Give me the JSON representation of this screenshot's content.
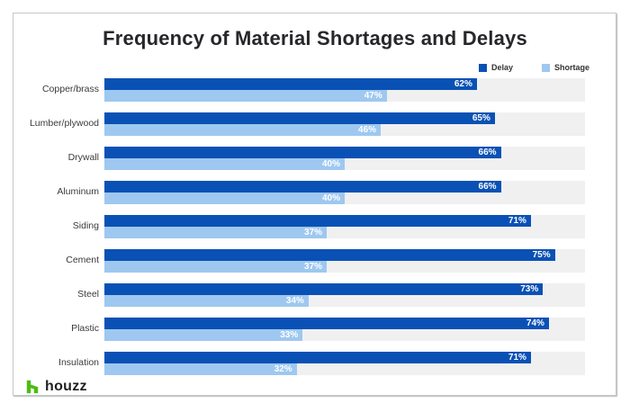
{
  "title": "Frequency of Material Shortages and Delays",
  "footer": {
    "logo_text": "houzz"
  },
  "colors": {
    "delay": "#0A51B5",
    "shortage": "#9EC8F0",
    "track": "#F0F0F1",
    "houzz_green": "#4DBC15",
    "title_text": "#27272B",
    "value_label_text": "#FFFFFF"
  },
  "chart_data": {
    "type": "bar",
    "orientation": "horizontal",
    "title": "Frequency of Material Shortages and Delays",
    "categories": [
      "Copper/brass",
      "Lumber/plywood",
      "Drywall",
      "Aluminum",
      "Siding",
      "Cement",
      "Steel",
      "Plastic",
      "Insulation"
    ],
    "series": [
      {
        "name": "Delay",
        "color": "#0A51B5",
        "values": [
          62,
          65,
          66,
          66,
          71,
          75,
          73,
          74,
          71
        ]
      },
      {
        "name": "Shortage",
        "color": "#9EC8F0",
        "values": [
          47,
          46,
          40,
          40,
          37,
          37,
          34,
          33,
          32
        ]
      }
    ],
    "value_suffix": "%",
    "xlim": [
      0,
      80
    ],
    "value_labels": "inside-end-white",
    "legend_position": "top-right",
    "grid": false,
    "track_background": true
  }
}
